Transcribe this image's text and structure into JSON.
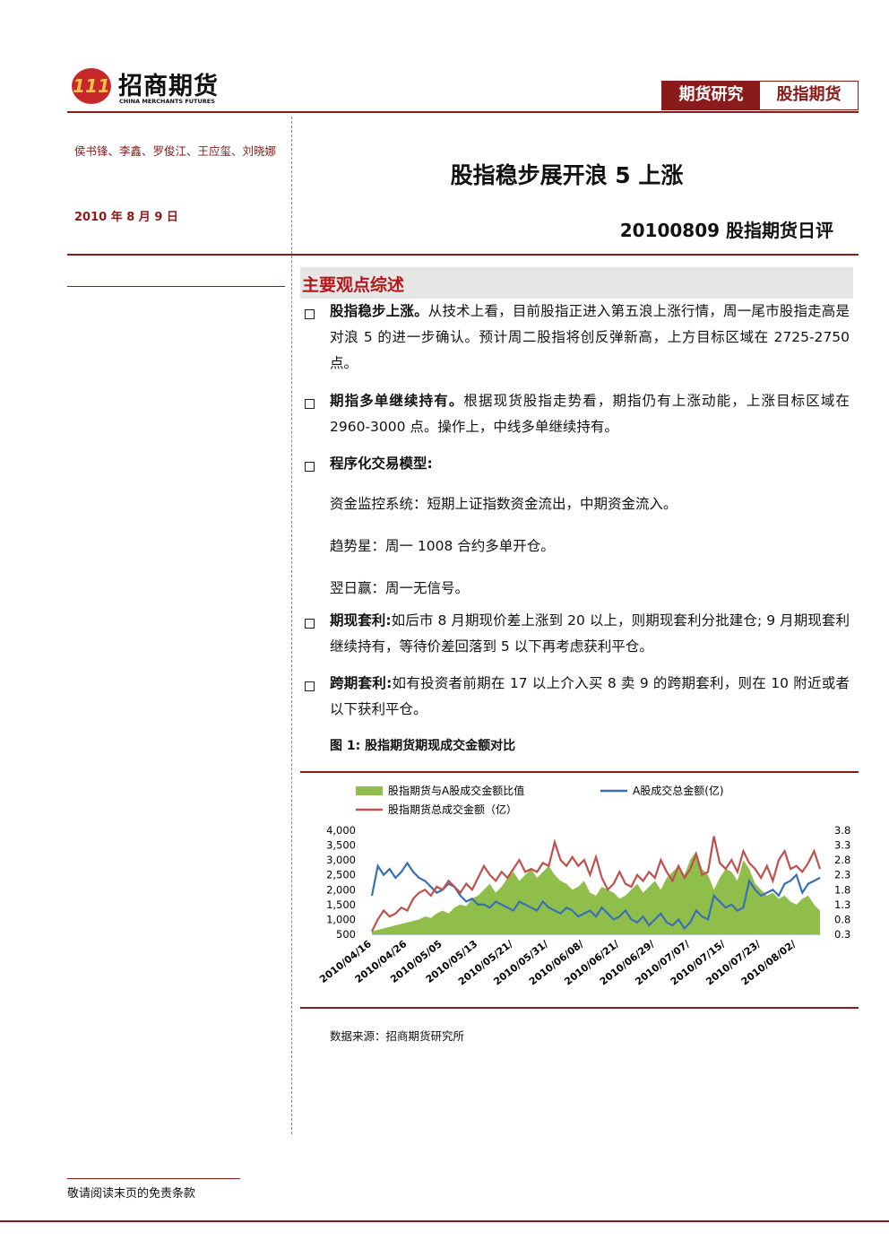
{
  "header": {
    "logo_cn": "招商期货",
    "logo_en": "CHINA MERCHANTS FUTURES",
    "tags": [
      "期货研究",
      "股指期货"
    ]
  },
  "authors": "侯书锋、李鑫、罗俊江、王应玺、刘晓娜",
  "date": "2010 年 8 月 9 日",
  "title": "股指稳步展开浪 5 上涨",
  "subtitle": "20100809 股指期货日评",
  "section": "主要观点综述",
  "bullets": [
    {
      "lead": "股指稳步上涨。",
      "text": "从技术上看，目前股指正进入第五浪上涨行情，周一尾市股指走高是对浪 5 的进一步确认。预计周二股指将创反弹新高，上方目标区域在 2725-2750 点。"
    },
    {
      "lead": "期指多单继续持有。",
      "text": "根据现货股指走势看，期指仍有上涨动能，上涨目标区域在 2960-3000 点。操作上，中线多单继续持有。"
    },
    {
      "lead": "程序化交易模型:",
      "lines": [
        "资金监控系统：短期上证指数资金流出，中期资金流入。",
        "趋势星：周一 1008 合约多单开仓。",
        "翌日赢：周一无信号。"
      ]
    },
    {
      "lead": "期现套利:",
      "text": "如后市 8 月期现价差上涨到 20 以上，则期现套利分批建仓; 9 月期现套利继续持有，等待价差回落到 5 以下再考虑获利平仓。"
    },
    {
      "lead": "跨期套利:",
      "text": "如有投资者前期在 17 以上介入买 8 卖 9 的跨期套利，则在 10 附近或者以下获利平仓。"
    }
  ],
  "figure_caption": "图 1: 股指期货期现成交金额对比",
  "source": "数据来源：招商期货研究所",
  "footer": "敬请阅读末页的免责条款",
  "chart_data": {
    "type": "line",
    "categories": [
      "2010/04/16",
      null,
      null,
      null,
      null,
      null,
      "2010/04/26",
      null,
      null,
      null,
      null,
      null,
      "2010/05/05",
      null,
      null,
      null,
      null,
      null,
      "2010/05/13",
      null,
      null,
      null,
      null,
      null,
      "2010/05/21/",
      null,
      null,
      null,
      null,
      null,
      "2010/05/31/",
      null,
      null,
      null,
      null,
      null,
      "2010/06/08/",
      null,
      null,
      null,
      null,
      null,
      "2010/06/21/",
      null,
      null,
      null,
      null,
      null,
      "2010/06/29/",
      null,
      null,
      null,
      null,
      null,
      "2010/07/07/",
      null,
      null,
      null,
      null,
      null,
      "2010/07/15/",
      null,
      null,
      null,
      null,
      null,
      "2010/07/23/",
      null,
      null,
      null,
      null,
      null,
      "2010/08/02/",
      null,
      null,
      null,
      null
    ],
    "series": [
      {
        "name": "股指期货与A股成交金额比值",
        "type": "area",
        "axis": "y2",
        "color": "#8fbf4a",
        "values": [
          0.4,
          0.45,
          0.5,
          0.55,
          0.6,
          0.65,
          0.7,
          0.75,
          0.8,
          0.9,
          0.85,
          1.0,
          1.1,
          1.0,
          1.2,
          1.3,
          1.25,
          1.5,
          1.6,
          1.8,
          2.0,
          1.7,
          1.9,
          2.2,
          2.4,
          2.1,
          2.3,
          2.5,
          2.2,
          2.4,
          2.6,
          2.3,
          2.1,
          2.0,
          1.8,
          1.9,
          2.1,
          1.7,
          1.6,
          1.9,
          1.8,
          1.7,
          1.5,
          1.6,
          1.8,
          2.0,
          1.7,
          1.9,
          2.1,
          1.8,
          2.2,
          2.4,
          2.6,
          2.3,
          2.8,
          3.1,
          2.5,
          2.3,
          1.8,
          2.2,
          2.5,
          2.4,
          2.1,
          2.8,
          2.5,
          2.0,
          1.8,
          1.6,
          1.7,
          1.5,
          1.6,
          1.4,
          1.3,
          1.5,
          1.6,
          1.3,
          1.1
        ]
      },
      {
        "name": "A股成交总金额(亿)",
        "type": "line",
        "color": "#3a6fb5",
        "values": [
          1800,
          2800,
          2500,
          2700,
          2400,
          2600,
          2900,
          2600,
          2400,
          2300,
          2100,
          1900,
          2000,
          2200,
          2100,
          1800,
          1600,
          1700,
          1500,
          1500,
          1400,
          1600,
          1500,
          1400,
          1300,
          1600,
          1500,
          1400,
          1300,
          1600,
          1400,
          1300,
          1200,
          1400,
          1300,
          1100,
          1200,
          1300,
          1100,
          1400,
          1200,
          1000,
          1100,
          1300,
          1000,
          900,
          1100,
          800,
          1000,
          1200,
          900,
          800,
          1000,
          700,
          900,
          1300,
          1100,
          1000,
          1800,
          1600,
          1400,
          1500,
          1300,
          1400,
          2300,
          2000,
          1800,
          1900,
          2000,
          1800,
          2200,
          2300,
          2500,
          1900,
          2200,
          2300,
          2400
        ]
      },
      {
        "name": "股指期货总成交金额（亿）",
        "type": "line",
        "color": "#c0504d",
        "values": [
          600,
          1000,
          1300,
          1100,
          1200,
          1400,
          1300,
          1700,
          1900,
          2000,
          1800,
          2100,
          2000,
          2300,
          2100,
          1900,
          2200,
          2000,
          2400,
          2800,
          2500,
          2300,
          2600,
          2400,
          2700,
          3000,
          2600,
          2700,
          2600,
          2900,
          2800,
          3600,
          3000,
          2800,
          3100,
          2800,
          3000,
          2500,
          3100,
          2400,
          2000,
          2200,
          2600,
          2200,
          2100,
          2500,
          2300,
          2600,
          2400,
          3000,
          2600,
          2300,
          2800,
          2400,
          2700,
          3200,
          2500,
          2600,
          3800,
          2900,
          2700,
          3000,
          2600,
          3300,
          2900,
          2700,
          2400,
          2800,
          2300,
          3000,
          3300,
          2700,
          2800,
          2600,
          2900,
          3300,
          2700
        ]
      }
    ],
    "ylim": [
      500,
      4000
    ],
    "yticks": [
      {
        "value": 500,
        "label": "500"
      },
      {
        "value": 1000,
        "label": "1,000"
      },
      {
        "value": 1500,
        "label": "1,500"
      },
      {
        "value": 2000,
        "label": "2,000"
      },
      {
        "value": 2500,
        "label": "2,500"
      },
      {
        "value": 3000,
        "label": "3,000"
      },
      {
        "value": 3500,
        "label": "3,500"
      },
      {
        "value": 4000,
        "label": "4,000"
      }
    ],
    "y2lim": [
      0.3,
      3.8
    ],
    "y2ticks": [
      0.3,
      0.8,
      1.3,
      1.8,
      2.3,
      2.8,
      3.3,
      3.8
    ],
    "legend": "top"
  }
}
